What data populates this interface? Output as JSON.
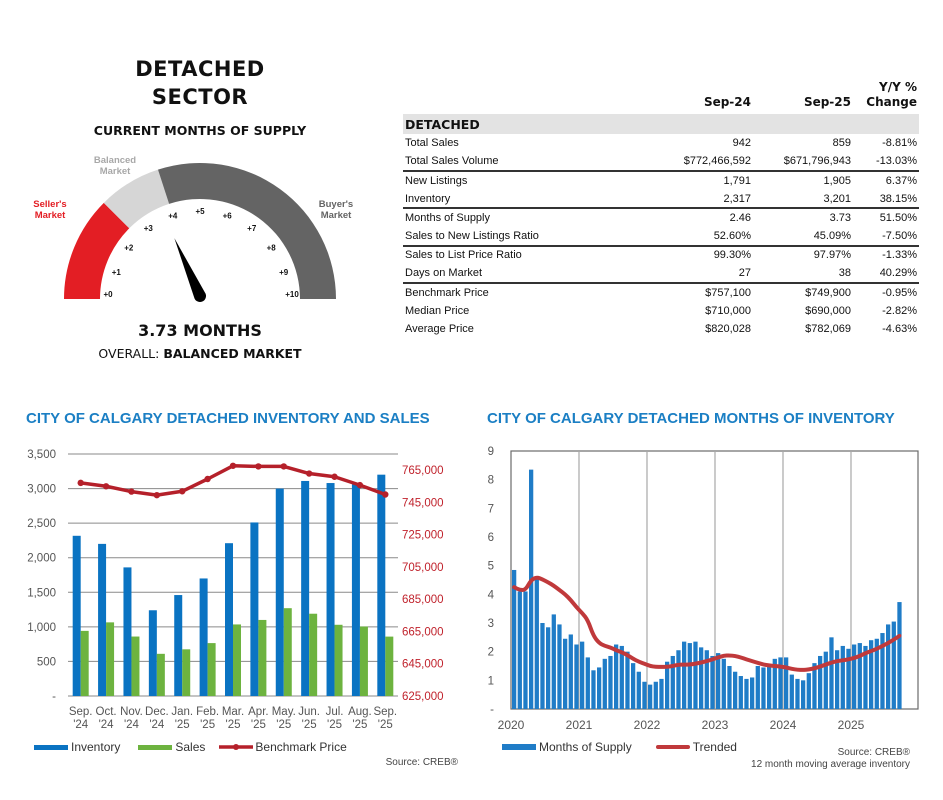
{
  "gauge": {
    "title_line1": "DETACHED",
    "title_line2": "SECTOR",
    "subtitle": "CURRENT MONTHS OF SUPPLY",
    "value": 3.73,
    "value_label": "3.73 MONTHS",
    "overall_prefix": "OVERALL: ",
    "overall_value": "BALANCED MARKET",
    "min": 0,
    "max": 10,
    "tick_labels": [
      "+0",
      "+1",
      "+2",
      "+3",
      "+4",
      "+5",
      "+6",
      "+7",
      "+8",
      "+9",
      "+10"
    ],
    "zones": [
      {
        "label_line1": "Seller's",
        "label_line2": "Market",
        "from": 0,
        "to": 2.5,
        "color": "#e31e24",
        "label_color": "#e31e24"
      },
      {
        "label_line1": "Balanced",
        "label_line2": "Market",
        "from": 2.5,
        "to": 4,
        "color": "#d6d6d6",
        "label_color": "#a8a8a8"
      },
      {
        "label_line1": "Buyer's",
        "label_line2": "Market",
        "from": 4,
        "to": 10,
        "color": "#646464",
        "label_color": "#646464"
      }
    ]
  },
  "table": {
    "headers": [
      "",
      "Sep-24",
      "Sep-25",
      "Y/Y %",
      "Change"
    ],
    "section": "DETACHED",
    "rows": [
      {
        "label": "Total Sales",
        "sep24": "942",
        "sep25": "859",
        "change": "-8.81%",
        "sep": false
      },
      {
        "label": "Total Sales Volume",
        "sep24": "$772,466,592",
        "sep25": "$671,796,943",
        "change": "-13.03%",
        "sep": true
      },
      {
        "label": "New Listings",
        "sep24": "1,791",
        "sep25": "1,905",
        "change": "6.37%",
        "sep": false
      },
      {
        "label": "Inventory",
        "sep24": "2,317",
        "sep25": "3,201",
        "change": "38.15%",
        "sep": true
      },
      {
        "label": "Months of Supply",
        "sep24": "2.46",
        "sep25": "3.73",
        "change": "51.50%",
        "sep": false
      },
      {
        "label": "Sales to New Listings Ratio",
        "sep24": "52.60%",
        "sep25": "45.09%",
        "change": "-7.50%",
        "sep": true
      },
      {
        "label": "Sales to List Price Ratio",
        "sep24": "99.30%",
        "sep25": "97.97%",
        "change": "-1.33%",
        "sep": false
      },
      {
        "label": "Days on Market",
        "sep24": "27",
        "sep25": "38",
        "change": "40.29%",
        "sep": true
      },
      {
        "label": "Benchmark Price",
        "sep24": "$757,100",
        "sep25": "$749,900",
        "change": "-0.95%",
        "sep": false
      },
      {
        "label": "Median Price",
        "sep24": "$710,000",
        "sep25": "$690,000",
        "change": "-2.82%",
        "sep": false
      },
      {
        "label": "Average Price",
        "sep24": "$820,028",
        "sep25": "$782,069",
        "change": "-4.63%",
        "sep": false
      }
    ]
  },
  "chart_data": [
    {
      "type": "bar",
      "title": "CITY OF CALGARY DETACHED INVENTORY AND SALES",
      "categories": [
        [
          "Sep.",
          "'24"
        ],
        [
          "Oct.",
          "'24"
        ],
        [
          "Nov.",
          "'24"
        ],
        [
          "Dec.",
          "'24"
        ],
        [
          "Jan.",
          "'25"
        ],
        [
          "Feb.",
          "'25"
        ],
        [
          "Mar.",
          "'25"
        ],
        [
          "Apr.",
          "'25"
        ],
        [
          "May.",
          "'25"
        ],
        [
          "Jun.",
          "'25"
        ],
        [
          "Jul.",
          "'25"
        ],
        [
          "Aug.",
          "'25"
        ],
        [
          "Sep.",
          "'25"
        ]
      ],
      "series": [
        {
          "name": "Inventory",
          "color": "#0a73c2",
          "axis": "left",
          "values": [
            2317,
            2200,
            1860,
            1240,
            1460,
            1700,
            2210,
            2510,
            3000,
            3110,
            3080,
            3060,
            3201
          ]
        },
        {
          "name": "Sales",
          "color": "#6db33f",
          "axis": "left",
          "values": [
            942,
            1065,
            860,
            610,
            675,
            765,
            1035,
            1100,
            1270,
            1190,
            1030,
            1005,
            859
          ]
        },
        {
          "name": "Benchmark Price",
          "color": "#b5202a",
          "axis": "right",
          "type": "line",
          "values": [
            757100,
            755000,
            751700,
            749500,
            751900,
            759500,
            767700,
            767300,
            767300,
            762900,
            760900,
            755700,
            749900
          ]
        }
      ],
      "y_left": {
        "min": 0,
        "max": 3500,
        "ticks": [
          0,
          500,
          1000,
          1500,
          2000,
          2500,
          3000,
          3500
        ],
        "tick_labels": [
          "-",
          "500",
          "1,000",
          "1,500",
          "2,000",
          "2,500",
          "3,000",
          "3,500"
        ]
      },
      "y_right": {
        "min": 625000,
        "max": 775000,
        "ticks": [
          625000,
          645000,
          665000,
          685000,
          705000,
          725000,
          745000,
          765000
        ],
        "tick_labels": [
          "625,000",
          "645,000",
          "665,000",
          "685,000",
          "705,000",
          "725,000",
          "745,000",
          "765,000"
        ],
        "color": "#c0222c"
      },
      "grid": true,
      "legend": "bottom",
      "source": "Source: CREB®"
    },
    {
      "type": "bar",
      "title": "CITY OF CALGARY DETACHED MONTHS OF INVENTORY",
      "x_start": "2020-01",
      "year_labels": [
        "2020",
        "2021",
        "2022",
        "2023",
        "2024",
        "2025"
      ],
      "series": [
        {
          "name": "Months of Supply",
          "color": "#1f7cc7",
          "values": [
            4.85,
            4.1,
            4.1,
            8.35,
            4.55,
            3.0,
            2.85,
            3.3,
            2.95,
            2.45,
            2.6,
            2.25,
            2.35,
            1.8,
            1.35,
            1.45,
            1.75,
            1.85,
            2.25,
            2.2,
            2.0,
            1.6,
            1.3,
            0.95,
            0.85,
            0.95,
            1.05,
            1.65,
            1.85,
            2.05,
            2.35,
            2.3,
            2.35,
            2.15,
            2.05,
            1.85,
            1.95,
            1.75,
            1.5,
            1.3,
            1.15,
            1.05,
            1.1,
            1.5,
            1.45,
            1.55,
            1.75,
            1.8,
            1.8,
            1.2,
            1.05,
            1.0,
            1.25,
            1.6,
            1.85,
            2.0,
            2.5,
            2.05,
            2.2,
            2.1,
            2.25,
            2.3,
            2.2,
            2.4,
            2.45,
            2.65,
            2.95,
            3.05,
            3.73
          ]
        },
        {
          "name": "Trended",
          "color": "#c0393b",
          "type": "line",
          "values": [
            4.25,
            4.15,
            4.15,
            4.5,
            4.6,
            4.52,
            4.42,
            4.3,
            4.15,
            4.0,
            3.8,
            3.55,
            3.35,
            3.1,
            2.55,
            2.3,
            2.2,
            2.15,
            2.05,
            1.98,
            1.88,
            1.75,
            1.65,
            1.58,
            1.5,
            1.47,
            1.47,
            1.47,
            1.5,
            1.55,
            1.55,
            1.55,
            1.58,
            1.62,
            1.67,
            1.73,
            1.8,
            1.86,
            1.87,
            1.85,
            1.8,
            1.73,
            1.67,
            1.61,
            1.55,
            1.52,
            1.5,
            1.48,
            1.45,
            1.4,
            1.37,
            1.36,
            1.38,
            1.42,
            1.48,
            1.55,
            1.62,
            1.67,
            1.7,
            1.73,
            1.78,
            1.85,
            1.95,
            2.02,
            2.1,
            2.2,
            2.3,
            2.42,
            2.55
          ]
        }
      ],
      "y": {
        "min": 0,
        "max": 9,
        "ticks": [
          0,
          1,
          2,
          3,
          4,
          5,
          6,
          7,
          8,
          9
        ],
        "tick_labels": [
          "-",
          "1",
          "2",
          "3",
          "4",
          "5",
          "6",
          "7",
          "8",
          "9"
        ]
      },
      "grid": "vertical year lines",
      "legend": "bottom",
      "source_line1": "Source: CREB®",
      "source_line2": "12 month moving average inventory"
    }
  ]
}
